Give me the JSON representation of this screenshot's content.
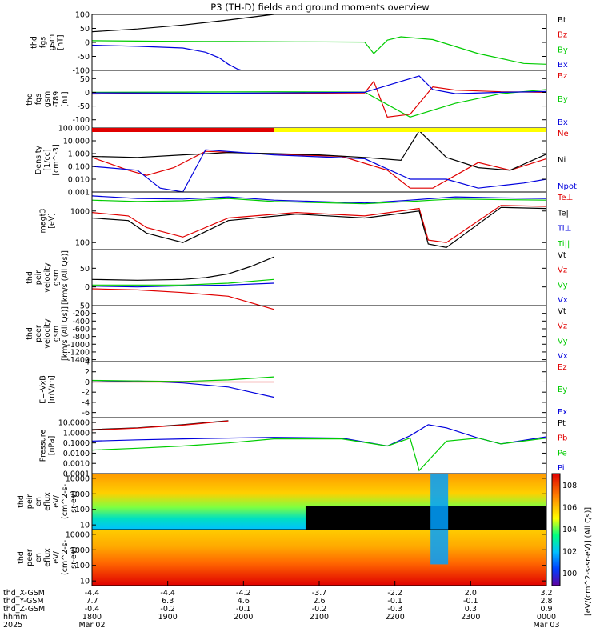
{
  "title": "P3 (TH-D) fields and ground moments overview",
  "chart_data": [
    {
      "type": "line",
      "name": "fgs_gsm",
      "ylabel": [
        "thd",
        "fgs",
        "gsm",
        "[nT]"
      ],
      "ylim": [
        -100,
        100
      ],
      "yticks": [
        "100",
        "50",
        "0",
        "-50",
        "-100"
      ],
      "legend": [
        "Bt",
        "Bz",
        "By",
        "Bx"
      ],
      "legend_colors": [
        "#000000",
        "#e00000",
        "#00cc00",
        "#0000dd"
      ],
      "series": [
        {
          "name": "Bt",
          "color": "#000000",
          "x": [
            0,
            0.1,
            0.2,
            0.3,
            0.4
          ],
          "y": [
            38,
            48,
            62,
            80,
            100
          ]
        },
        {
          "name": "By",
          "color": "#00cc00",
          "x": [
            0,
            0.15,
            0.3,
            0.45,
            0.6,
            0.62,
            0.65,
            0.68,
            0.75,
            0.85,
            0.95,
            1.0
          ],
          "y": [
            6,
            4,
            3,
            2,
            1,
            -40,
            8,
            20,
            10,
            -40,
            -75,
            -78
          ]
        },
        {
          "name": "Bx",
          "color": "#0000dd",
          "x": [
            0,
            0.1,
            0.2,
            0.25,
            0.28,
            0.3,
            0.32,
            0.33
          ],
          "y": [
            -10,
            -14,
            -20,
            -35,
            -55,
            -78,
            -95,
            -100
          ]
        }
      ]
    },
    {
      "type": "line",
      "name": "fgs_gsm_t89",
      "ylabel": [
        "thd",
        "fgs",
        "gsm",
        "-T89",
        "[nT]"
      ],
      "ylim": [
        -130,
        80
      ],
      "yticks": [
        "50",
        "0",
        "-50",
        "-100"
      ],
      "legend": [
        "Bz",
        "By",
        "Bx"
      ],
      "legend_colors": [
        "#e00000",
        "#00cc00",
        "#0000dd"
      ],
      "series": [
        {
          "name": "Bz",
          "color": "#e00000",
          "x": [
            0,
            0.2,
            0.4,
            0.6,
            0.62,
            0.65,
            0.7,
            0.75,
            0.8,
            0.9,
            1.0
          ],
          "y": [
            -6,
            -3,
            -4,
            -2,
            40,
            -90,
            -80,
            20,
            8,
            2,
            0
          ]
        },
        {
          "name": "By",
          "color": "#00cc00",
          "x": [
            0,
            0.2,
            0.4,
            0.6,
            0.7,
            0.8,
            0.9,
            1.0
          ],
          "y": [
            0,
            1,
            2,
            1,
            -90,
            -40,
            -5,
            10
          ]
        },
        {
          "name": "Bx",
          "color": "#0000dd",
          "x": [
            0,
            0.3,
            0.6,
            0.72,
            0.75,
            0.8,
            0.9,
            1.0
          ],
          "y": [
            -2,
            -3,
            0,
            60,
            10,
            -5,
            0,
            3
          ]
        }
      ]
    },
    {
      "type": "line",
      "name": "density",
      "ylabel": [
        "Density",
        "[1/cc]",
        "[cm^-3]"
      ],
      "ylim": [
        0.001,
        100
      ],
      "yscale": "log",
      "yticks": [
        "100.000",
        "10.000",
        "1.000",
        "0.100",
        "0.010",
        "0.001"
      ],
      "legend": [
        "Ne",
        "Ni",
        "Npot"
      ],
      "legend_colors": [
        "#e00000",
        "#000000",
        "#0000dd"
      ],
      "series": [
        {
          "name": "Ne",
          "color": "#e00000",
          "x": [
            0,
            0.08,
            0.12,
            0.18,
            0.25,
            0.4,
            0.55,
            0.65,
            0.7,
            0.75,
            0.85,
            0.92,
            1.0
          ],
          "y": [
            0.5,
            0.05,
            0.02,
            0.08,
            1.5,
            0.9,
            0.6,
            0.05,
            0.002,
            0.002,
            0.2,
            0.05,
            0.4
          ]
        },
        {
          "name": "Ni",
          "color": "#000000",
          "x": [
            0,
            0.1,
            0.2,
            0.3,
            0.4,
            0.5,
            0.6,
            0.68,
            0.72,
            0.78,
            0.85,
            0.92,
            1.0
          ],
          "y": [
            0.6,
            0.5,
            0.8,
            1.2,
            1.0,
            0.8,
            0.5,
            0.3,
            60,
            0.5,
            0.08,
            0.05,
            0.9
          ]
        },
        {
          "name": "Npot",
          "color": "#0000dd",
          "x": [
            0,
            0.1,
            0.15,
            0.2,
            0.25,
            0.4,
            0.6,
            0.7,
            0.78,
            0.85,
            0.95,
            1.0
          ],
          "y": [
            0.1,
            0.05,
            0.002,
            0.001,
            2.0,
            0.8,
            0.4,
            0.01,
            0.01,
            0.002,
            0.005,
            0.01
          ]
        }
      ]
    },
    {
      "type": "line",
      "name": "temperature",
      "ylabel": [
        "magt3",
        "[eV]"
      ],
      "ylim": [
        60,
        4000
      ],
      "yscale": "log",
      "yticks": [
        "1000",
        "100"
      ],
      "legend": [
        "Te⊥",
        "Te||",
        "Ti⊥",
        "Ti||"
      ],
      "legend_colors": [
        "#e00000",
        "#000000",
        "#0000dd",
        "#00cc00"
      ],
      "series": [
        {
          "name": "Ti⊥",
          "color": "#0000dd",
          "x": [
            0,
            0.1,
            0.2,
            0.3,
            0.4,
            0.6,
            0.7,
            0.75,
            0.8,
            0.9,
            1.0
          ],
          "y": [
            3000,
            2500,
            2400,
            2800,
            2200,
            1800,
            2200,
            2500,
            2800,
            2600,
            2500
          ]
        },
        {
          "name": "Ti||",
          "color": "#00cc00",
          "x": [
            0,
            0.1,
            0.2,
            0.3,
            0.4,
            0.6,
            0.7,
            0.75,
            0.8,
            0.9,
            1.0
          ],
          "y": [
            2200,
            2000,
            2100,
            2500,
            2000,
            1700,
            2000,
            2200,
            2400,
            2300,
            2200
          ]
        },
        {
          "name": "Te⊥",
          "color": "#e00000",
          "x": [
            0,
            0.08,
            0.12,
            0.2,
            0.3,
            0.45,
            0.6,
            0.72,
            0.74,
            0.78,
            0.9,
            1.0
          ],
          "y": [
            900,
            700,
            300,
            150,
            600,
            900,
            700,
            1200,
            120,
            100,
            1500,
            1400
          ]
        },
        {
          "name": "Te||",
          "color": "#000000",
          "x": [
            0,
            0.08,
            0.12,
            0.2,
            0.3,
            0.45,
            0.6,
            0.72,
            0.74,
            0.78,
            0.9,
            1.0
          ],
          "y": [
            600,
            500,
            200,
            100,
            500,
            800,
            600,
            1000,
            90,
            70,
            1300,
            1200
          ]
        }
      ]
    },
    {
      "type": "line",
      "name": "peir_velocity",
      "ylabel": [
        "thd",
        "peir",
        "velocity",
        "gsm",
        "[km/s (All Qs)]"
      ],
      "ylim": [
        -50,
        100
      ],
      "yticks": [
        "50",
        "0",
        "-50"
      ],
      "legend": [
        "Vt",
        "Vz",
        "Vy",
        "Vx"
      ],
      "legend_colors": [
        "#000000",
        "#e00000",
        "#00cc00",
        "#0000dd"
      ],
      "series": [
        {
          "name": "Vt",
          "color": "#000000",
          "x": [
            0,
            0.1,
            0.2,
            0.25,
            0.3,
            0.35,
            0.4
          ],
          "y": [
            20,
            18,
            20,
            25,
            35,
            55,
            80
          ]
        },
        {
          "name": "Vy",
          "color": "#00cc00",
          "x": [
            0,
            0.1,
            0.2,
            0.3,
            0.4
          ],
          "y": [
            5,
            5,
            5,
            10,
            20
          ]
        },
        {
          "name": "Vx",
          "color": "#0000dd",
          "x": [
            0,
            0.1,
            0.2,
            0.3,
            0.4
          ],
          "y": [
            2,
            0,
            3,
            5,
            10
          ]
        },
        {
          "name": "Vz",
          "color": "#e00000",
          "x": [
            0,
            0.1,
            0.2,
            0.3,
            0.4
          ],
          "y": [
            -5,
            -8,
            -15,
            -25,
            -60
          ]
        }
      ]
    },
    {
      "type": "line",
      "name": "peer_velocity",
      "ylabel": [
        "thd",
        "peer",
        "velocity",
        "gsm",
        "[km/s (All Qs)]"
      ],
      "ylim": [
        -1450,
        0
      ],
      "yticks": [
        "-200",
        "-400",
        "-600",
        "-800",
        "-1000",
        "-1200",
        "-1400"
      ],
      "legend": [
        "Vt",
        "Vz",
        "Vy",
        "Vx"
      ],
      "legend_colors": [
        "#000000",
        "#e00000",
        "#00cc00",
        "#0000dd"
      ],
      "series": []
    },
    {
      "type": "line",
      "name": "e_vxb",
      "ylabel": [
        "E=-VxB",
        "[mV/m]"
      ],
      "ylim": [
        -7,
        4
      ],
      "yticks": [
        "4",
        "2",
        "0",
        "-2",
        "-4",
        "-6"
      ],
      "legend": [
        "Ez",
        "Ey",
        "Ex"
      ],
      "legend_colors": [
        "#e00000",
        "#00cc00",
        "#0000dd"
      ],
      "series": [
        {
          "name": "Ex",
          "color": "#0000dd",
          "x": [
            0,
            0.1,
            0.2,
            0.3,
            0.35,
            0.4
          ],
          "y": [
            0,
            0.2,
            -0.2,
            -1,
            -2,
            -3
          ]
        },
        {
          "name": "Ey",
          "color": "#00cc00",
          "x": [
            0,
            0.1,
            0.2,
            0.3,
            0.4
          ],
          "y": [
            0.3,
            0.2,
            0.1,
            0.4,
            1
          ]
        },
        {
          "name": "Ez",
          "color": "#e00000",
          "x": [
            0,
            0.1,
            0.2,
            0.3,
            0.4
          ],
          "y": [
            0,
            0,
            0,
            0,
            0
          ]
        }
      ]
    },
    {
      "type": "line",
      "name": "pressure",
      "ylabel": [
        "Pressure",
        "[nPa]"
      ],
      "ylim": [
        0.0001,
        30
      ],
      "yscale": "log",
      "yticks": [
        "10.0000",
        "1.0000",
        "0.1000",
        "0.0100",
        "0.0010",
        "0.0001"
      ],
      "legend": [
        "Pt",
        "Pb",
        "Pe",
        "Pi"
      ],
      "legend_colors": [
        "#000000",
        "#e00000",
        "#00cc00",
        "#0000dd"
      ],
      "series": [
        {
          "name": "Pt",
          "color": "#000000",
          "x": [
            0,
            0.1,
            0.2,
            0.3
          ],
          "y": [
            2.0,
            3.0,
            6.0,
            15.0
          ]
        },
        {
          "name": "Pb",
          "color": "#e00000",
          "x": [
            0,
            0.1,
            0.2,
            0.3
          ],
          "y": [
            1.8,
            2.8,
            5.5,
            14.0
          ]
        },
        {
          "name": "Pi",
          "color": "#0000dd",
          "x": [
            0,
            0.1,
            0.2,
            0.3,
            0.4,
            0.55,
            0.65,
            0.7,
            0.74,
            0.78,
            0.85,
            0.9,
            1.0
          ],
          "y": [
            0.15,
            0.2,
            0.25,
            0.3,
            0.35,
            0.3,
            0.05,
            0.5,
            6.0,
            3.0,
            0.3,
            0.08,
            0.4
          ]
        },
        {
          "name": "Pe",
          "color": "#00cc00",
          "x": [
            0,
            0.1,
            0.2,
            0.3,
            0.4,
            0.55,
            0.65,
            0.7,
            0.72,
            0.78,
            0.85,
            0.9,
            1.0
          ],
          "y": [
            0.02,
            0.03,
            0.05,
            0.1,
            0.25,
            0.25,
            0.05,
            0.3,
            0.0002,
            0.15,
            0.3,
            0.08,
            0.3
          ]
        }
      ]
    },
    {
      "type": "heatmap",
      "name": "peir_en_eflux",
      "ylabel": [
        "thd",
        "peir",
        "en",
        "eflux",
        "eV/",
        "(cm^2-s-",
        "sr-eV)"
      ],
      "ylim": [
        5,
        20000
      ],
      "yscale": "log",
      "yticks": [
        "10000",
        "1000",
        "100",
        "10"
      ],
      "colorbar_label": "[eV/(cm^2-s-sr-eV)] (All Qs)]"
    },
    {
      "type": "heatmap",
      "name": "peer_en_eflux",
      "ylabel": [
        "thd",
        "peer",
        "en",
        "eflux",
        "eV/",
        "(cm^2-s-",
        "sr-eV)"
      ],
      "ylim": [
        5,
        20000
      ],
      "yscale": "log",
      "yticks": [
        "10000",
        "1000",
        "100",
        "10"
      ]
    }
  ],
  "colorbar": {
    "tick_labels": [
      "10^8",
      "10^6",
      "10^4",
      "10^2",
      "10^0"
    ],
    "label": "[eV/(cm^2-s-sr-eV)] (All Qs)]"
  },
  "x_axis": {
    "row_labels": [
      "thd_X-GSM",
      "thd_Y-GSM",
      "thd_Z-GSM",
      "hhmm",
      "2025"
    ],
    "ticks": [
      {
        "x": 0.0,
        "X": "-4.4",
        "Y": "7.7",
        "Z": "-0.4",
        "hhmm": "1800",
        "date": "Mar 02"
      },
      {
        "x": 0.1667,
        "X": "-4.4",
        "Y": "6.3",
        "Z": "-0.2",
        "hhmm": "1900",
        "date": ""
      },
      {
        "x": 0.3333,
        "X": "-4.2",
        "Y": "4.6",
        "Z": "-0.1",
        "hhmm": "2000",
        "date": ""
      },
      {
        "x": 0.5,
        "X": "-3.7",
        "Y": "2.6",
        "Z": "-0.2",
        "hhmm": "2100",
        "date": ""
      },
      {
        "x": 0.6667,
        "X": "-2.2",
        "Y": "-0.1",
        "Z": "-0.3",
        "hhmm": "2200",
        "date": ""
      },
      {
        "x": 0.8333,
        "X": "2.0",
        "Y": "-0.1",
        "Z": "0.3",
        "hhmm": "2300",
        "date": ""
      },
      {
        "x": 1.0,
        "X": "3.2",
        "Y": "2.8",
        "Z": "0.9",
        "hhmm": "0000",
        "date": "Mar 03"
      }
    ]
  },
  "mode_bar": {
    "colors": [
      "#e00000",
      "#ffff00"
    ],
    "split": 0.4
  }
}
